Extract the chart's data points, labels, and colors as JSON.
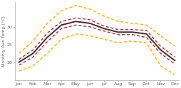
{
  "months": [
    "Jan",
    "Feb",
    "Mar",
    "Apr",
    "May",
    "Jun",
    "Jul",
    "Aug",
    "Sep",
    "Oct",
    "Nov",
    "Dec"
  ],
  "median": [
    20.0,
    22.5,
    27.0,
    30.5,
    31.5,
    31.0,
    29.5,
    28.5,
    28.5,
    28.0,
    23.5,
    20.5
  ],
  "p25": [
    19.2,
    21.5,
    25.8,
    29.5,
    30.5,
    30.0,
    28.8,
    27.8,
    27.8,
    27.0,
    22.5,
    19.5
  ],
  "p75": [
    20.8,
    23.5,
    28.2,
    31.5,
    32.5,
    32.0,
    30.2,
    29.2,
    29.2,
    29.0,
    24.5,
    21.5
  ],
  "min_temp": [
    17.5,
    19.0,
    22.5,
    26.5,
    28.0,
    27.5,
    26.5,
    25.5,
    26.0,
    25.5,
    19.0,
    16.5
  ],
  "max_temp": [
    22.5,
    26.0,
    31.0,
    34.5,
    36.0,
    35.0,
    33.0,
    31.5,
    31.0,
    30.5,
    27.5,
    24.5
  ],
  "median_color": "#333333",
  "pct_color": "#cc2222",
  "minmax_color": "#ffaa00",
  "ylabel": "Monthly Ave Temp (°C)",
  "ylim": [
    15,
    37
  ],
  "yticks": [
    20,
    25,
    30
  ],
  "bg_color": "#ffffff",
  "linewidth_median": 1.4,
  "linewidth_pct": 1.0,
  "linewidth_minmax": 1.0
}
